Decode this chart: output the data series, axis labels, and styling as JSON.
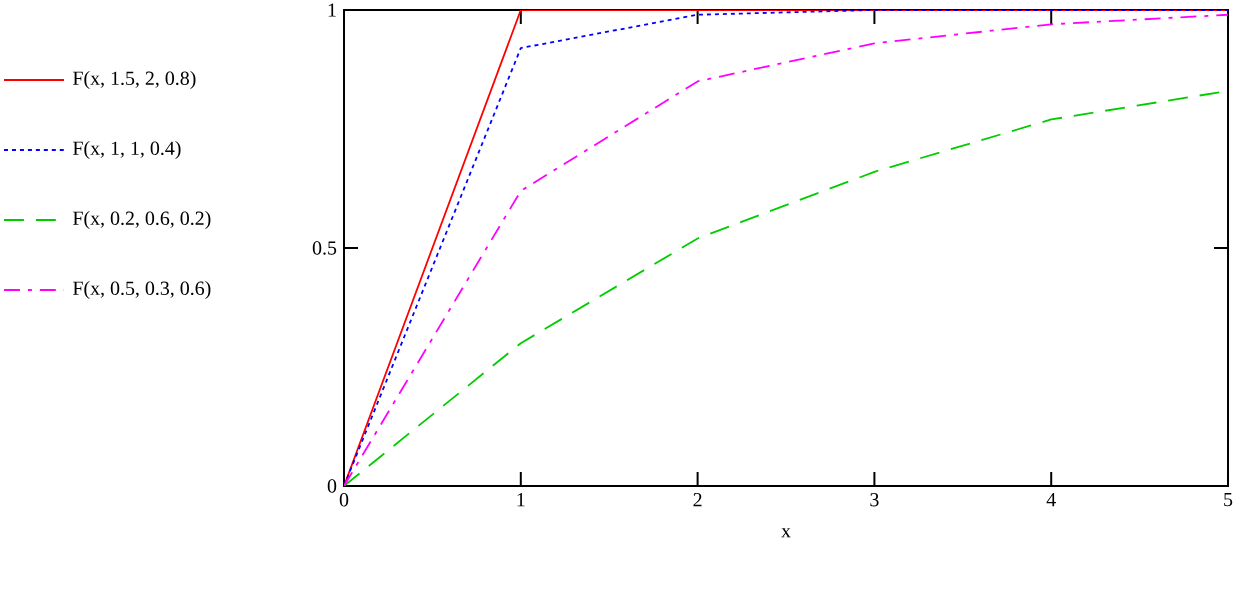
{
  "chart_data": {
    "type": "line",
    "xlabel": "x",
    "x": [
      0,
      1,
      2,
      3,
      4,
      5
    ],
    "series": [
      {
        "name": "F(x, 1.5, 2, 0.8)",
        "color": "#ff0000",
        "line_style": "solid",
        "values": [
          0,
          1,
          1,
          1,
          1,
          1
        ]
      },
      {
        "name": "F(x, 1, 1, 0.4)",
        "color": "#0000ff",
        "line_style": "dotted",
        "values": [
          0,
          0.92,
          0.99,
          1,
          1,
          1
        ]
      },
      {
        "name": "F(x, 0.2, 0.6, 0.2)",
        "color": "#00cc00",
        "line_style": "dashed",
        "values": [
          0,
          0.3,
          0.52,
          0.66,
          0.77,
          0.83
        ]
      },
      {
        "name": "F(x, 0.5, 0.3, 0.6)",
        "color": "#ff00ff",
        "line_style": "dashdot",
        "values": [
          0,
          0.62,
          0.85,
          0.93,
          0.97,
          0.99
        ]
      }
    ],
    "xlim": [
      0,
      5
    ],
    "ylim": [
      0,
      1
    ],
    "xticks": [
      0,
      1,
      2,
      3,
      4,
      5
    ],
    "yticks": [
      0,
      0.5,
      1
    ],
    "grid": false,
    "legend": "left",
    "marker": "none"
  }
}
